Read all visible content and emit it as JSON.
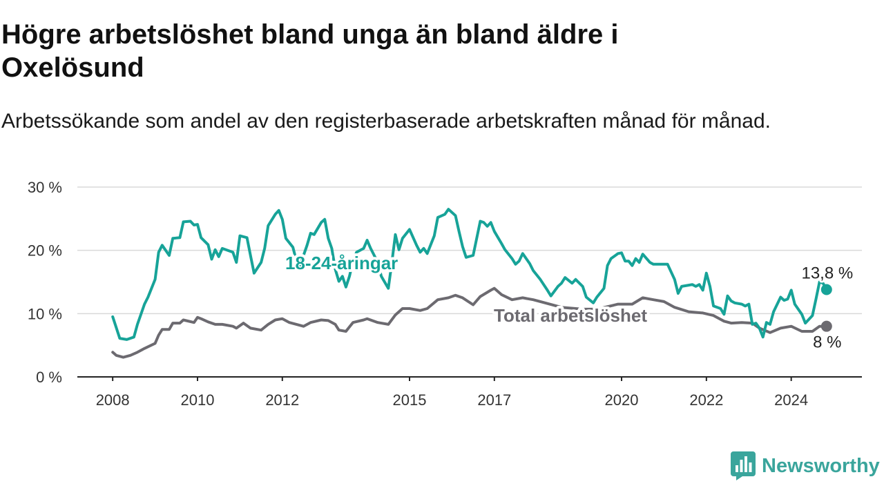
{
  "title": "Högre arbetslöshet bland unga än bland äldre i Oxelösund",
  "subtitle": "Arbetssökande som andel av den registerbaserade arbetskraften månad för månad.",
  "brand": {
    "name": "Newsworthy",
    "color": "#3aa59c",
    "icon": "bar-chart-bubble-icon"
  },
  "chart_data": {
    "type": "line",
    "ylim": [
      0,
      30
    ],
    "xlim": [
      "2007-03",
      "2025-09"
    ],
    "y_ticks": [
      0,
      10,
      20,
      30
    ],
    "y_tick_labels": [
      "0 %",
      "10 %",
      "20 %",
      "30 %"
    ],
    "x_ticks": [
      "2008",
      "2010",
      "2012",
      "2015",
      "2017",
      "2020",
      "2022",
      "2024"
    ],
    "grid": "horizontal",
    "legend": "none (direct labels)",
    "series": [
      {
        "name": "18-24-åringar",
        "color": "#17a398",
        "end_label": "13,8 %",
        "x": [
          "2008-01",
          "2008-03",
          "2008-05",
          "2008-07",
          "2008-08",
          "2008-10",
          "2008-11",
          "2009-01",
          "2009-02",
          "2009-03",
          "2009-05",
          "2009-06",
          "2009-08",
          "2009-09",
          "2009-11",
          "2009-12",
          "2010-01",
          "2010-02",
          "2010-04",
          "2010-05",
          "2010-06",
          "2010-07",
          "2010-08",
          "2010-11",
          "2010-12",
          "2011-01",
          "2011-03",
          "2011-04",
          "2011-05",
          "2011-07",
          "2011-08",
          "2011-09",
          "2011-11",
          "2011-12",
          "2012-01",
          "2012-02",
          "2012-04",
          "2012-05",
          "2012-06",
          "2012-08",
          "2012-09",
          "2012-10",
          "2012-12",
          "2013-01",
          "2013-02",
          "2013-03",
          "2013-04",
          "2013-05",
          "2013-06",
          "2013-07",
          "2013-08",
          "2013-09",
          "2013-10",
          "2013-12",
          "2014-01",
          "2014-02",
          "2014-04",
          "2014-05",
          "2014-07",
          "2014-08",
          "2014-09",
          "2014-10",
          "2014-11",
          "2015-01",
          "2015-03",
          "2015-04",
          "2015-05",
          "2015-06",
          "2015-08",
          "2015-09",
          "2015-11",
          "2015-12",
          "2016-02",
          "2016-03",
          "2016-04",
          "2016-05",
          "2016-07",
          "2016-09",
          "2016-10",
          "2016-11",
          "2016-12",
          "2017-01",
          "2017-03",
          "2017-04",
          "2017-06",
          "2017-07",
          "2017-08",
          "2017-09",
          "2017-11",
          "2017-12",
          "2018-02",
          "2018-04",
          "2018-05",
          "2018-07",
          "2018-08",
          "2018-09",
          "2018-11",
          "2018-12",
          "2019-02",
          "2019-03",
          "2019-05",
          "2019-06",
          "2019-08",
          "2019-09",
          "2019-10",
          "2019-12",
          "2020-01",
          "2020-02",
          "2020-03",
          "2020-04",
          "2020-05",
          "2020-06",
          "2020-07",
          "2020-09",
          "2020-10",
          "2020-12",
          "2021-01",
          "2021-02",
          "2021-04",
          "2021-05",
          "2021-06",
          "2021-08",
          "2021-09",
          "2021-10",
          "2021-11",
          "2021-12",
          "2022-01",
          "2022-02",
          "2022-03",
          "2022-05",
          "2022-06",
          "2022-07",
          "2022-08",
          "2022-09",
          "2022-11",
          "2022-12",
          "2023-01",
          "2023-02",
          "2023-03",
          "2023-04",
          "2023-05",
          "2023-06",
          "2023-07",
          "2023-08",
          "2023-10",
          "2023-11",
          "2023-12",
          "2024-01",
          "2024-02",
          "2024-04",
          "2024-05",
          "2024-07",
          "2024-08",
          "2024-09",
          "2024-10",
          "2024-11"
        ],
        "y": [
          9.5,
          6.1,
          5.9,
          6.3,
          8.3,
          11.5,
          12.6,
          15.4,
          19.7,
          20.8,
          19.2,
          21.9,
          22.0,
          24.5,
          24.6,
          24.0,
          24.1,
          22.0,
          20.9,
          18.6,
          20.1,
          19.0,
          20.3,
          19.7,
          18.1,
          22.3,
          22.0,
          19.2,
          16.4,
          18.1,
          20.3,
          23.9,
          25.7,
          26.3,
          24.9,
          21.9,
          20.5,
          18.3,
          17.6,
          20.8,
          22.7,
          22.5,
          24.4,
          24.9,
          21.9,
          20.3,
          17.0,
          15.1,
          15.9,
          14.2,
          15.9,
          18.3,
          19.7,
          20.3,
          21.6,
          20.3,
          18.1,
          15.9,
          14.0,
          18.1,
          22.5,
          20.1,
          21.9,
          23.3,
          20.8,
          19.7,
          20.3,
          19.5,
          22.3,
          25.2,
          25.7,
          26.5,
          25.5,
          23.0,
          20.6,
          18.9,
          19.2,
          24.6,
          24.4,
          23.8,
          24.4,
          23.0,
          21.1,
          20.1,
          18.7,
          17.8,
          18.3,
          19.5,
          17.9,
          16.8,
          15.4,
          13.7,
          12.8,
          14.3,
          14.8,
          15.7,
          14.8,
          15.4,
          14.3,
          12.6,
          11.7,
          12.6,
          14.0,
          17.6,
          18.7,
          19.5,
          19.6,
          18.3,
          18.3,
          17.6,
          18.7,
          18.1,
          19.4,
          18.1,
          17.8,
          17.8,
          17.8,
          17.8,
          15.4,
          13.2,
          14.3,
          14.5,
          14.6,
          14.3,
          14.6,
          13.7,
          16.4,
          14.3,
          11.2,
          10.8,
          9.9,
          12.8,
          12.0,
          11.7,
          11.5,
          11.2,
          11.5,
          8.3,
          8.5,
          7.7,
          6.3,
          8.6,
          8.3,
          10.3,
          12.6,
          12.1,
          12.3,
          13.7,
          11.5,
          9.9,
          8.5,
          9.7,
          12.3,
          15.0,
          14.8,
          13.8
        ]
      },
      {
        "name": "Total arbetslöshet",
        "color": "#6c6a70",
        "end_label": "8 %",
        "x": [
          "2008-01",
          "2008-02",
          "2008-04",
          "2008-06",
          "2008-08",
          "2008-10",
          "2009-01",
          "2009-02",
          "2009-03",
          "2009-05",
          "2009-06",
          "2009-08",
          "2009-09",
          "2009-12",
          "2010-01",
          "2010-02",
          "2010-04",
          "2010-06",
          "2010-08",
          "2010-11",
          "2010-12",
          "2011-02",
          "2011-04",
          "2011-07",
          "2011-09",
          "2011-11",
          "2012-01",
          "2012-03",
          "2012-05",
          "2012-07",
          "2012-09",
          "2012-12",
          "2013-02",
          "2013-04",
          "2013-05",
          "2013-07",
          "2013-09",
          "2013-12",
          "2014-01",
          "2014-04",
          "2014-07",
          "2014-09",
          "2014-11",
          "2015-01",
          "2015-04",
          "2015-06",
          "2015-09",
          "2015-12",
          "2016-02",
          "2016-04",
          "2016-07",
          "2016-09",
          "2016-12",
          "2017-01",
          "2017-03",
          "2017-06",
          "2017-09",
          "2017-12",
          "2018-04",
          "2018-08",
          "2019-02",
          "2019-06",
          "2019-12",
          "2020-04",
          "2020-07",
          "2020-10",
          "2021-01",
          "2021-04",
          "2021-08",
          "2021-12",
          "2022-03",
          "2022-06",
          "2022-08",
          "2022-11",
          "2023-02",
          "2023-04",
          "2023-07",
          "2023-10",
          "2024-01",
          "2024-04",
          "2024-07",
          "2024-09",
          "2024-11"
        ],
        "y": [
          3.9,
          3.4,
          3.1,
          3.4,
          3.9,
          4.5,
          5.3,
          6.6,
          7.5,
          7.5,
          8.5,
          8.5,
          9.0,
          8.6,
          9.4,
          9.2,
          8.7,
          8.3,
          8.3,
          8.0,
          7.7,
          8.5,
          7.7,
          7.4,
          8.3,
          9.0,
          9.2,
          8.6,
          8.3,
          8.0,
          8.6,
          9.0,
          8.9,
          8.3,
          7.4,
          7.2,
          8.6,
          9.0,
          9.2,
          8.6,
          8.3,
          9.8,
          10.8,
          10.8,
          10.5,
          10.8,
          12.2,
          12.5,
          12.9,
          12.5,
          11.4,
          12.7,
          13.7,
          14.0,
          13.0,
          12.2,
          12.5,
          12.2,
          11.6,
          11.0,
          10.7,
          10.7,
          11.5,
          11.5,
          12.5,
          12.2,
          11.9,
          11.0,
          10.3,
          10.1,
          9.7,
          8.8,
          8.5,
          8.6,
          8.5,
          7.7,
          7.0,
          7.7,
          8.0,
          7.2,
          7.2,
          8.0,
          8.0
        ]
      }
    ]
  }
}
